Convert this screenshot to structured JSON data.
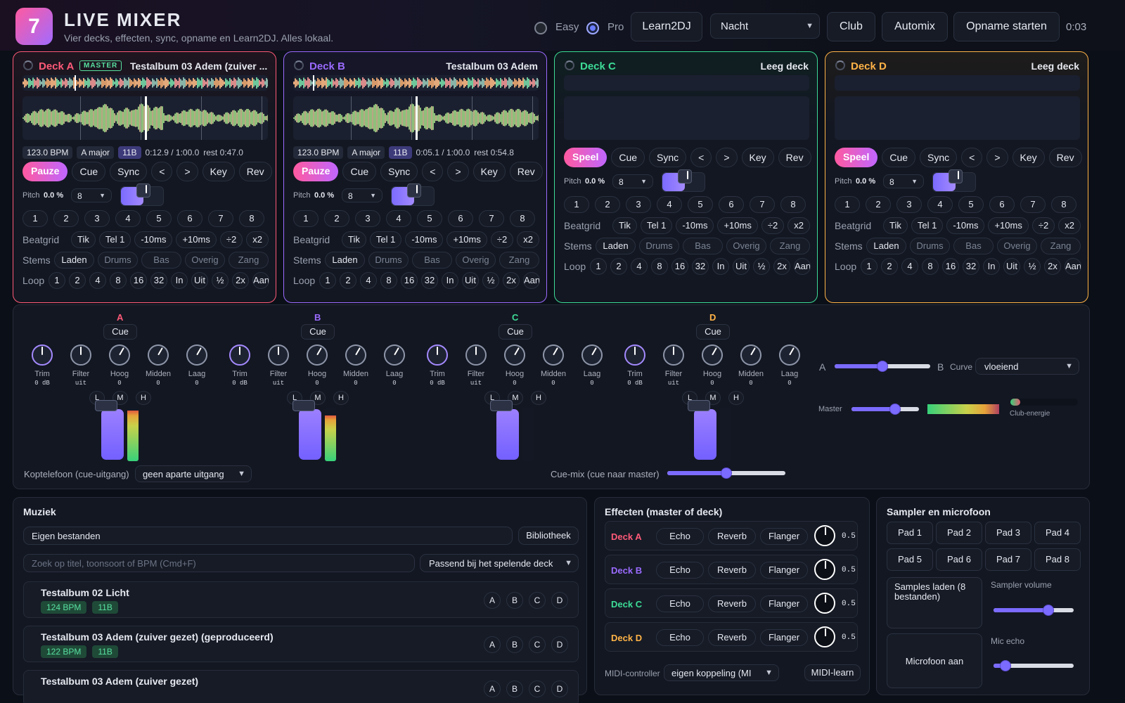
{
  "header": {
    "logo": "7",
    "title": "LIVE MIXER",
    "subtitle": "Vier decks, effecten, sync, opname en Learn2DJ. Alles lokaal.",
    "mode_easy": "Easy",
    "mode_pro": "Pro",
    "learn": "Learn2DJ",
    "theme": "Nacht",
    "club": "Club",
    "automix": "Automix",
    "record": "Opname starten",
    "time": "0:03"
  },
  "decks": [
    {
      "name": "Deck A",
      "badge": "MASTER",
      "track": "Testalbum 03 Adem (zuiver ...",
      "color": "#ff5a78",
      "bpm": "123.0 BPM",
      "key": "A major",
      "camelot": "11B",
      "pos": "0:12.9 / 1:00.0",
      "rest": "rest 0:47.0",
      "play": "Pauze",
      "pitch_label": "Pitch",
      "pitch": "0.0 %",
      "beats": "8"
    },
    {
      "name": "Deck B",
      "badge": "",
      "track": "Testalbum 03 Adem",
      "color": "#9b6bff",
      "bpm": "123.0 BPM",
      "key": "A major",
      "camelot": "11B",
      "pos": "0:05.1 / 1:00.0",
      "rest": "rest 0:54.8",
      "play": "Pauze",
      "pitch_label": "Pitch",
      "pitch": "0.0 %",
      "beats": "8"
    },
    {
      "name": "Deck C",
      "badge": "",
      "track": "Leeg deck",
      "color": "#3ddc97",
      "bpm": "",
      "key": "",
      "camelot": "",
      "pos": "",
      "rest": "",
      "play": "Speel",
      "pitch_label": "Pitch",
      "pitch": "0.0 %",
      "beats": "8"
    },
    {
      "name": "Deck D",
      "badge": "",
      "track": "Leeg deck",
      "color": "#ffb347",
      "bpm": "",
      "key": "",
      "camelot": "",
      "pos": "",
      "rest": "",
      "play": "Speel",
      "pitch_label": "Pitch",
      "pitch": "0.0 %",
      "beats": "8"
    }
  ],
  "deck_controls": [
    "Cue",
    "Sync",
    "<",
    ">",
    "Key",
    "Rev"
  ],
  "hotcues": [
    "1",
    "2",
    "3",
    "4",
    "5",
    "6",
    "7",
    "8"
  ],
  "beatgrid": {
    "label": "Beatgrid",
    "buttons": [
      "Tik",
      "Tel 1",
      "-10ms",
      "+10ms",
      "÷2",
      "x2"
    ]
  },
  "stems": {
    "label": "Stems",
    "buttons": [
      "Laden",
      "Drums",
      "Bas",
      "Overig",
      "Zang"
    ]
  },
  "loop": {
    "label": "Loop",
    "buttons": [
      "1",
      "2",
      "4",
      "8",
      "16",
      "32",
      "In",
      "Uit",
      "½",
      "2x",
      "Aan"
    ]
  },
  "mixer": {
    "channels": [
      {
        "label": "A",
        "color": "#ff5a78",
        "vu": 0.95
      },
      {
        "label": "B",
        "color": "#9b6bff",
        "vu": 0.85
      },
      {
        "label": "C",
        "color": "#3ddc97",
        "vu": 0
      },
      {
        "label": "D",
        "color": "#ffb347",
        "vu": 0
      }
    ],
    "cue": "Cue",
    "knobs": [
      {
        "label": "Trim",
        "value": "0 dB"
      },
      {
        "label": "Filter",
        "value": "uit"
      },
      {
        "label": "Hoog",
        "value": "0"
      },
      {
        "label": "Midden",
        "value": "0"
      },
      {
        "label": "Laag",
        "value": "0"
      }
    ],
    "lmh": [
      "L",
      "M",
      "H"
    ],
    "crossfader": {
      "left": "A",
      "right": "B",
      "position": 0.5
    },
    "curve_label": "Curve",
    "curve": "vloeiend",
    "master_label": "Master",
    "master_level": 0.65,
    "club_energy": "Club-energie",
    "headphones_label": "Koptelefoon (cue-uitgang)",
    "headphones": "geen aparte uitgang",
    "cuemix_label": "Cue-mix (cue naar master)",
    "cuemix": 0.5
  },
  "music": {
    "title": "Muziek",
    "source": "Eigen bestanden",
    "library": "Bibliotheek",
    "search_placeholder": "Zoek op titel, toonsoort of BPM (Cmd+F)",
    "filter": "Passend bij het spelende deck",
    "songs": [
      {
        "title": "Testalbum 02 Licht",
        "bpm": "124 BPM",
        "key": "11B"
      },
      {
        "title": "Testalbum 03 Adem (zuiver gezet) (geproduceerd)",
        "bpm": "122 BPM",
        "key": "11B"
      },
      {
        "title": "Testalbum 03 Adem (zuiver gezet)",
        "bpm": "",
        "key": ""
      }
    ],
    "deck_buttons": [
      "A",
      "B",
      "C",
      "D"
    ]
  },
  "effects": {
    "title": "Effecten (master of deck)",
    "rows": [
      {
        "deck": "Deck A",
        "color": "#ff5a78",
        "value": "0.5"
      },
      {
        "deck": "Deck B",
        "color": "#9b6bff",
        "value": "0.5"
      },
      {
        "deck": "Deck C",
        "color": "#3ddc97",
        "value": "0.5"
      },
      {
        "deck": "Deck D",
        "color": "#ffb347",
        "value": "0.5"
      }
    ],
    "fx": [
      "Echo",
      "Reverb",
      "Flanger"
    ],
    "midi_label": "MIDI-controller",
    "midi": "eigen koppeling (MI",
    "midi_learn": "MIDI-learn"
  },
  "sampler": {
    "title": "Sampler en microfoon",
    "pads": [
      "Pad 1",
      "Pad 2",
      "Pad 3",
      "Pad 4",
      "Pad 5",
      "Pad 6",
      "Pad 7",
      "Pad 8"
    ],
    "load": "Samples laden (8 bestanden)",
    "volume_label": "Sampler volume",
    "volume": 0.68,
    "mic": "Microfoon aan",
    "echo_label": "Mic echo",
    "echo": 0.15
  }
}
